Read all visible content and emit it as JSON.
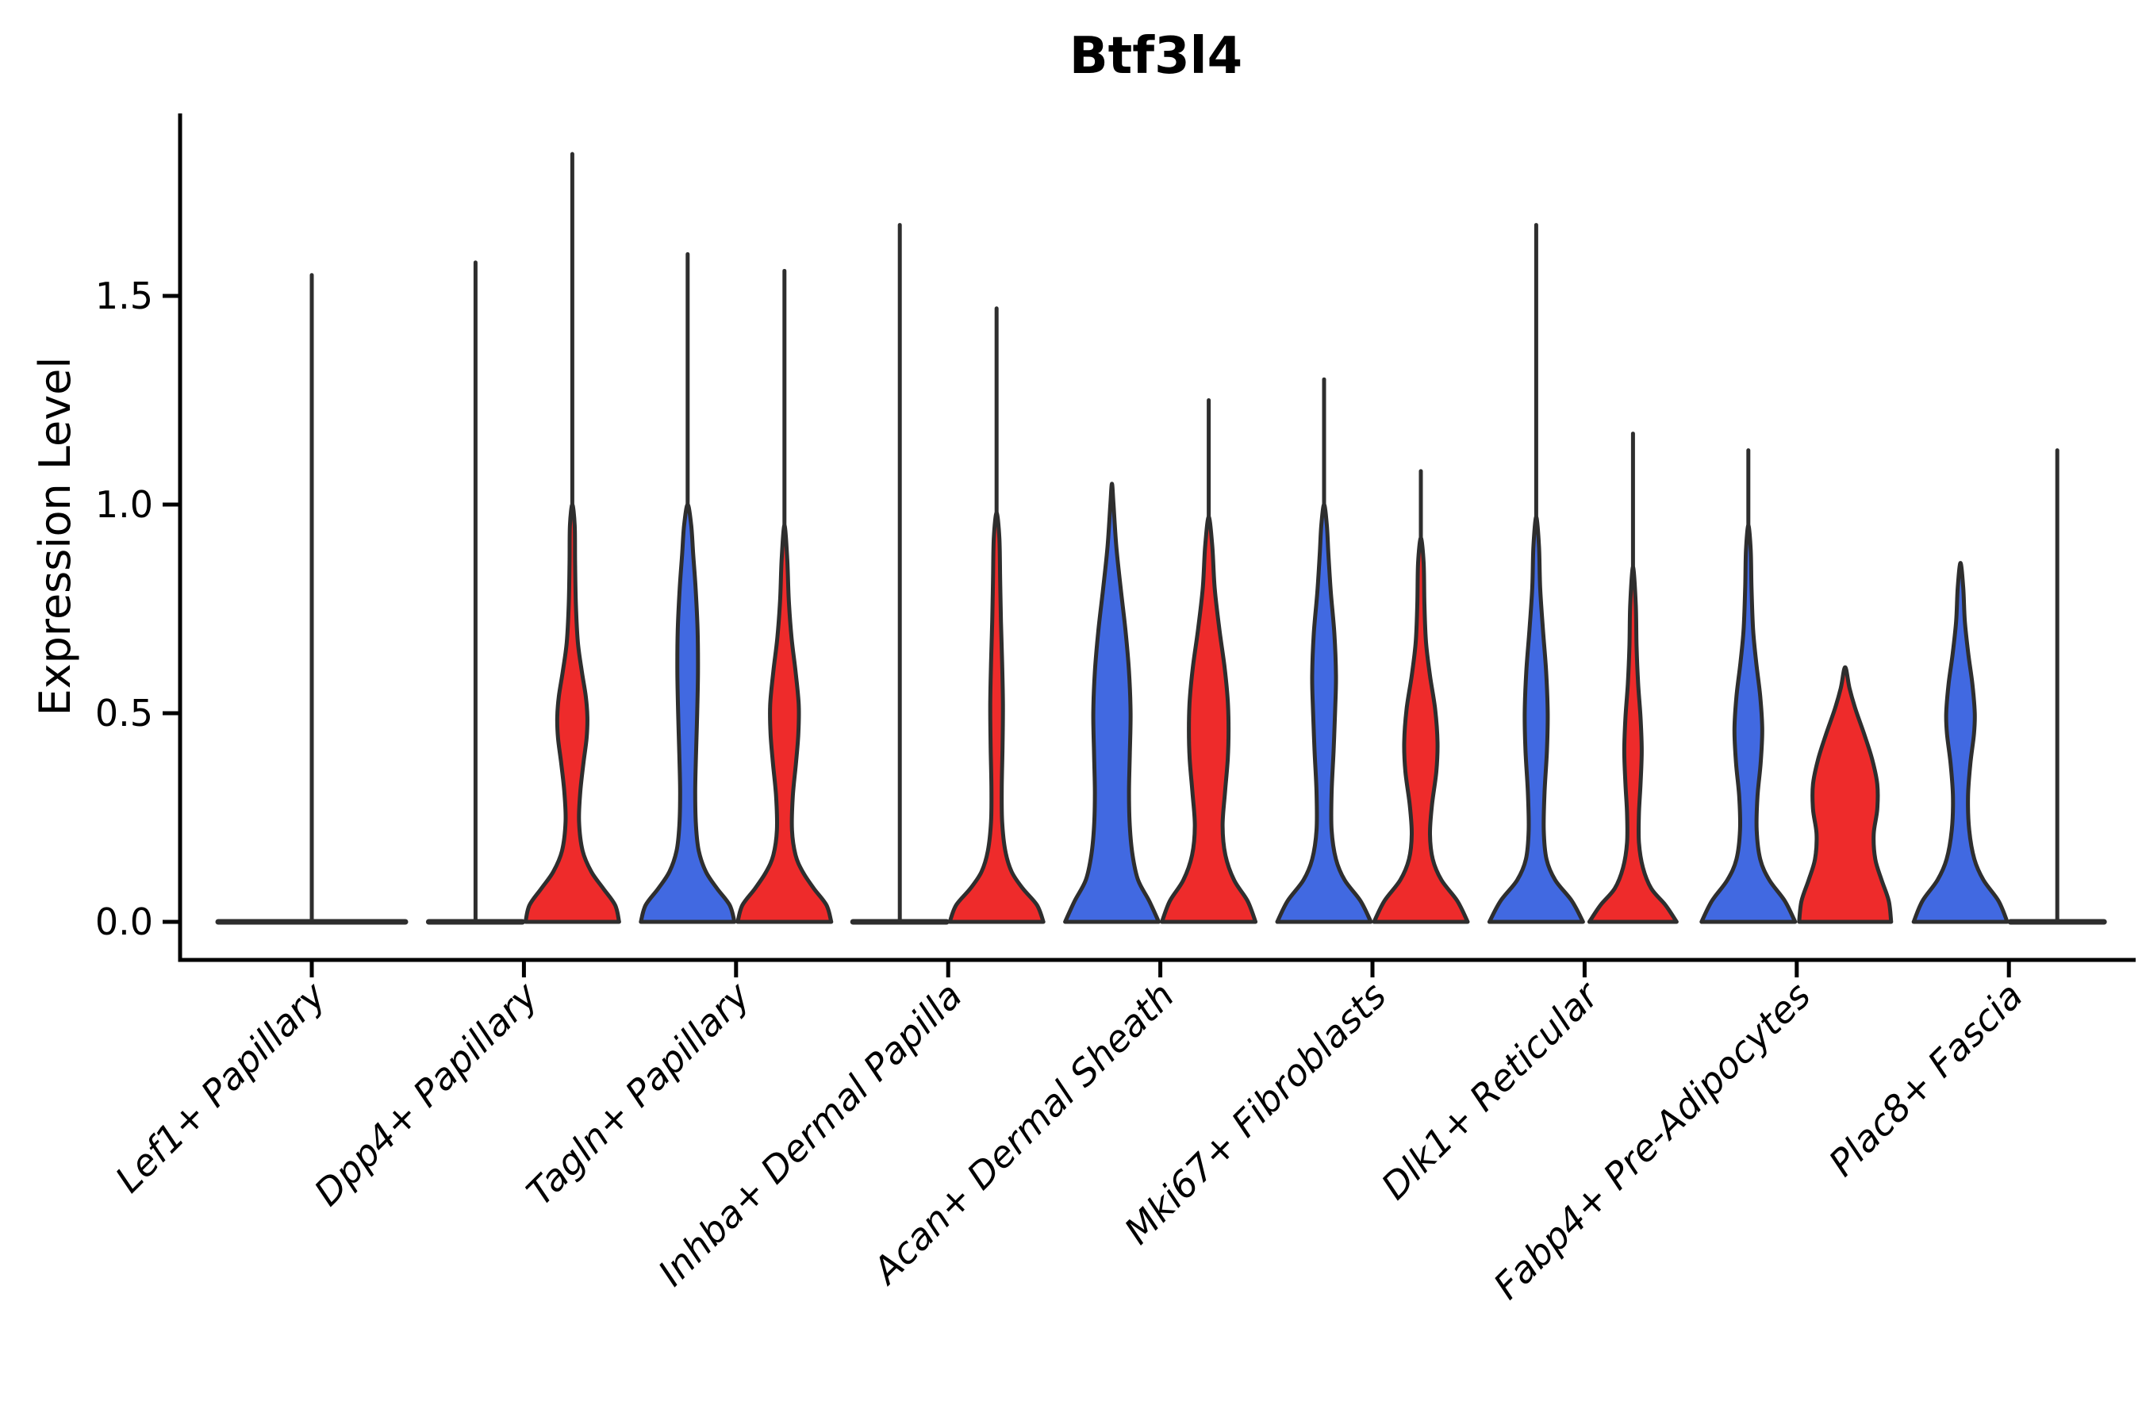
{
  "title": "Btf3l4",
  "y_axis": {
    "label": "Expression Level",
    "ticks": [
      "0.0",
      "0.5",
      "1.0",
      "1.5"
    ],
    "tick_values": [
      0,
      0.5,
      1.0,
      1.5
    ]
  },
  "colors": {
    "blue": "#4169E1",
    "red": "#EE2B2B",
    "outline": "#2E2E2E",
    "axis": "#000000",
    "background": "#FFFFFF"
  },
  "chart_data": {
    "type": "violin",
    "title": "Btf3l4",
    "ylabel": "Expression Level",
    "ylim": [
      -0.09,
      1.94
    ],
    "grid": false,
    "legend": "none",
    "groups": [
      "blue",
      "red"
    ],
    "categories": [
      {
        "key": "lef1",
        "label": "Lef1+ Papillary",
        "violins": [
          {
            "group": "combined",
            "style": "flat",
            "span": 118,
            "offset": 0,
            "max": 1.55
          }
        ]
      },
      {
        "key": "dpp4",
        "label": "Dpp4+ Papillary",
        "violins": [
          {
            "group": "blue",
            "style": "flat",
            "span": 59,
            "offset": -61,
            "max": 1.58
          },
          {
            "group": "red",
            "style": "body",
            "offset": 61,
            "max": 1.84,
            "tip": 1.0,
            "profile": [
              [
                0,
                59
              ],
              [
                0.04,
                54
              ],
              [
                0.08,
                39
              ],
              [
                0.12,
                24
              ],
              [
                0.17,
                13
              ],
              [
                0.24,
                8.5
              ],
              [
                0.31,
                10
              ],
              [
                0.38,
                14
              ],
              [
                0.44,
                18
              ],
              [
                0.49,
                19
              ],
              [
                0.54,
                17
              ],
              [
                0.6,
                12
              ],
              [
                0.67,
                7
              ],
              [
                0.76,
                4.5
              ],
              [
                0.86,
                3.5
              ],
              [
                0.95,
                3
              ]
            ]
          }
        ]
      },
      {
        "key": "tagln",
        "label": "Tagln+ Papillary",
        "violins": [
          {
            "group": "blue",
            "style": "body",
            "offset": -61,
            "max": 1.6,
            "tip": 1.0,
            "profile": [
              [
                0,
                59
              ],
              [
                0.04,
                53
              ],
              [
                0.08,
                37
              ],
              [
                0.12,
                23
              ],
              [
                0.17,
                14
              ],
              [
                0.23,
                10.5
              ],
              [
                0.31,
                9.5
              ],
              [
                0.4,
                10.5
              ],
              [
                0.5,
                12
              ],
              [
                0.6,
                13
              ],
              [
                0.7,
                12.5
              ],
              [
                0.8,
                10
              ],
              [
                0.88,
                7
              ],
              [
                0.95,
                4.5
              ]
            ]
          },
          {
            "group": "red",
            "style": "body",
            "offset": 61,
            "max": 1.56,
            "tip": 0.95,
            "profile": [
              [
                0,
                59
              ],
              [
                0.04,
                53
              ],
              [
                0.08,
                37
              ],
              [
                0.12,
                23
              ],
              [
                0.16,
                14
              ],
              [
                0.22,
                9.5
              ],
              [
                0.3,
                10.5
              ],
              [
                0.38,
                14.5
              ],
              [
                0.45,
                17.5
              ],
              [
                0.52,
                18
              ],
              [
                0.6,
                14
              ],
              [
                0.68,
                9
              ],
              [
                0.77,
                5.5
              ],
              [
                0.87,
                3.5
              ]
            ]
          }
        ]
      },
      {
        "key": "inhba",
        "label": "Inhba+ Dermal Papilla",
        "violins": [
          {
            "group": "blue",
            "style": "flat",
            "span": 59,
            "offset": -61,
            "max": 1.67
          },
          {
            "group": "red",
            "style": "body",
            "offset": 61,
            "max": 1.47,
            "tip": 0.98,
            "profile": [
              [
                0,
                59
              ],
              [
                0.04,
                51
              ],
              [
                0.08,
                33
              ],
              [
                0.12,
                19
              ],
              [
                0.17,
                11
              ],
              [
                0.24,
                7
              ],
              [
                0.32,
                6.5
              ],
              [
                0.42,
                7.5
              ],
              [
                0.52,
                8
              ],
              [
                0.62,
                7
              ],
              [
                0.72,
                5.5
              ],
              [
                0.82,
                4.5
              ],
              [
                0.92,
                3.5
              ]
            ]
          }
        ]
      },
      {
        "key": "acan",
        "label": "Acan+ Dermal Sheath",
        "violins": [
          {
            "group": "blue",
            "style": "body",
            "offset": -61,
            "max": null,
            "tip": 1.05,
            "profile": [
              [
                0,
                59
              ],
              [
                0.05,
                47
              ],
              [
                0.1,
                33
              ],
              [
                0.16,
                26
              ],
              [
                0.23,
                22.5
              ],
              [
                0.31,
                21.5
              ],
              [
                0.4,
                22.5
              ],
              [
                0.5,
                23.5
              ],
              [
                0.6,
                21.5
              ],
              [
                0.7,
                17
              ],
              [
                0.8,
                11
              ],
              [
                0.9,
                5.5
              ],
              [
                1.0,
                2
              ]
            ]
          },
          {
            "group": "red",
            "style": "body",
            "offset": 61,
            "max": 1.25,
            "tip": 0.97,
            "profile": [
              [
                0,
                59
              ],
              [
                0.05,
                49
              ],
              [
                0.1,
                32
              ],
              [
                0.16,
                21
              ],
              [
                0.23,
                17.5
              ],
              [
                0.31,
                20.5
              ],
              [
                0.39,
                24
              ],
              [
                0.46,
                25
              ],
              [
                0.53,
                24
              ],
              [
                0.61,
                20
              ],
              [
                0.7,
                13.5
              ],
              [
                0.8,
                7.5
              ],
              [
                0.9,
                4.5
              ]
            ]
          }
        ]
      },
      {
        "key": "mki67",
        "label": "Mki67+ Fibroblasts",
        "violins": [
          {
            "group": "blue",
            "style": "body",
            "offset": -61,
            "max": 1.3,
            "tip": 1.0,
            "profile": [
              [
                0,
                59
              ],
              [
                0.05,
                46
              ],
              [
                0.1,
                26
              ],
              [
                0.15,
                15
              ],
              [
                0.22,
                9.5
              ],
              [
                0.31,
                9.5
              ],
              [
                0.41,
                12
              ],
              [
                0.51,
                14
              ],
              [
                0.59,
                15
              ],
              [
                0.69,
                13
              ],
              [
                0.79,
                8.5
              ],
              [
                0.88,
                5.5
              ],
              [
                0.95,
                3.5
              ]
            ]
          },
          {
            "group": "red",
            "style": "body",
            "offset": 61,
            "max": 1.08,
            "tip": 0.92,
            "profile": [
              [
                0,
                59
              ],
              [
                0.05,
                46
              ],
              [
                0.1,
                26
              ],
              [
                0.15,
                15
              ],
              [
                0.21,
                11.5
              ],
              [
                0.28,
                14
              ],
              [
                0.36,
                19.5
              ],
              [
                0.43,
                21
              ],
              [
                0.51,
                18
              ],
              [
                0.59,
                11.5
              ],
              [
                0.67,
                6.5
              ],
              [
                0.76,
                4.5
              ],
              [
                0.86,
                3.5
              ]
            ]
          }
        ]
      },
      {
        "key": "dlk1",
        "label": "Dlk1+ Reticular",
        "violins": [
          {
            "group": "blue",
            "style": "body",
            "offset": -61,
            "max": 1.67,
            "tip": 0.97,
            "profile": [
              [
                0,
                59
              ],
              [
                0.05,
                45
              ],
              [
                0.1,
                24
              ],
              [
                0.15,
                13
              ],
              [
                0.22,
                9.5
              ],
              [
                0.31,
                10.5
              ],
              [
                0.41,
                13.5
              ],
              [
                0.5,
                14.5
              ],
              [
                0.6,
                12.5
              ],
              [
                0.7,
                8.5
              ],
              [
                0.8,
                5
              ],
              [
                0.9,
                3.5
              ]
            ]
          },
          {
            "group": "red",
            "style": "body",
            "offset": 61,
            "max": 1.17,
            "tip": 0.85,
            "profile": [
              [
                0,
                55
              ],
              [
                0.04,
                41
              ],
              [
                0.08,
                23
              ],
              [
                0.13,
                12.5
              ],
              [
                0.19,
                7.5
              ],
              [
                0.26,
                7.5
              ],
              [
                0.33,
                9.5
              ],
              [
                0.41,
                11
              ],
              [
                0.49,
                9.5
              ],
              [
                0.57,
                6.5
              ],
              [
                0.66,
                4.5
              ],
              [
                0.76,
                3.5
              ]
            ]
          }
        ]
      },
      {
        "key": "fabp4",
        "label": "Fabp4+ Pre-Adipocytes",
        "violins": [
          {
            "group": "blue",
            "style": "body",
            "offset": -61,
            "max": 1.13,
            "tip": 0.95,
            "profile": [
              [
                0,
                59
              ],
              [
                0.05,
                46
              ],
              [
                0.1,
                26.5
              ],
              [
                0.15,
                15
              ],
              [
                0.22,
                10.5
              ],
              [
                0.3,
                11.5
              ],
              [
                0.38,
                15.5
              ],
              [
                0.46,
                17.5
              ],
              [
                0.54,
                15
              ],
              [
                0.62,
                10
              ],
              [
                0.7,
                6
              ],
              [
                0.8,
                4
              ],
              [
                0.89,
                3
              ]
            ]
          },
          {
            "group": "red",
            "style": "body",
            "offset": 61,
            "max": null,
            "tip": 0.61,
            "profile": [
              [
                0,
                58
              ],
              [
                0.05,
                55
              ],
              [
                0.1,
                46
              ],
              [
                0.15,
                38
              ],
              [
                0.21,
                36
              ],
              [
                0.27,
                40.5
              ],
              [
                0.33,
                40.5
              ],
              [
                0.39,
                34
              ],
              [
                0.45,
                24
              ],
              [
                0.51,
                13
              ],
              [
                0.56,
                5.5
              ]
            ]
          }
        ]
      },
      {
        "key": "plac8",
        "label": "Plac8+ Fascia",
        "violins": [
          {
            "group": "blue",
            "style": "body",
            "offset": -61,
            "max": null,
            "tip": 0.86,
            "profile": [
              [
                0,
                59
              ],
              [
                0.05,
                48
              ],
              [
                0.1,
                29
              ],
              [
                0.15,
                17.5
              ],
              [
                0.22,
                11
              ],
              [
                0.3,
                9.5
              ],
              [
                0.38,
                12.5
              ],
              [
                0.45,
                17
              ],
              [
                0.5,
                18
              ],
              [
                0.57,
                15
              ],
              [
                0.64,
                10
              ],
              [
                0.72,
                5.5
              ],
              [
                0.8,
                3.5
              ]
            ]
          },
          {
            "group": "red",
            "style": "flat",
            "span": 59,
            "offset": 61,
            "max": 1.13
          }
        ]
      }
    ]
  }
}
